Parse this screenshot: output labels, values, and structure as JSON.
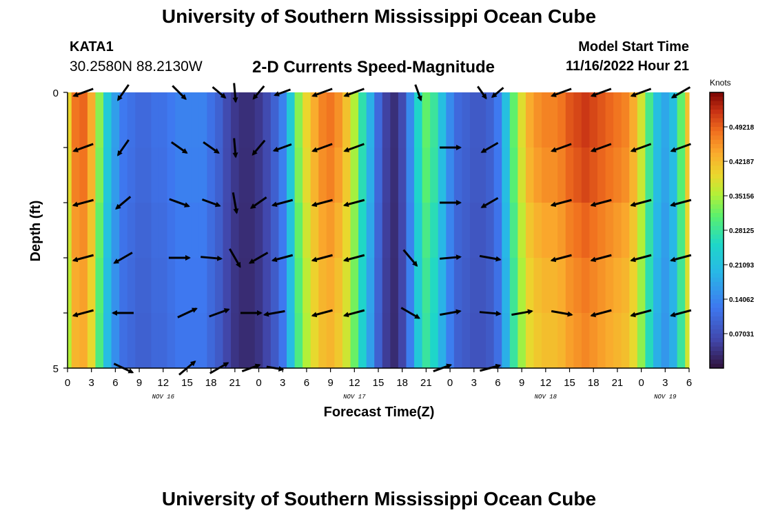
{
  "header": {
    "title": "University of Southern Mississippi Ocean Cube",
    "station_id": "KATA1",
    "station_coords": "30.2580N  88.2130W",
    "chart_title": "2-D Currents Speed-Magnitude",
    "start_label": "Model Start Time",
    "start_value": "11/16/2022 Hour 21"
  },
  "footer": {
    "title": "University of Southern Mississippi Ocean Cube"
  },
  "chart_data": {
    "type": "heatmap",
    "title": "2-D Currents Speed-Magnitude",
    "xlabel": "Forecast Time(Z)",
    "ylabel": "Depth (ft)",
    "ylim": [
      0,
      5
    ],
    "xlim_hours": [
      0,
      78
    ],
    "units": "Knots",
    "colorbar": {
      "min": 0,
      "max": 0.5625,
      "ticks": [
        "0.07031",
        "0.14062",
        "0.21093",
        "0.28125",
        "0.35156",
        "0.42187",
        "0.49218"
      ],
      "tick_values": [
        0.07031,
        0.14062,
        0.21093,
        0.28125,
        0.35156,
        0.42187,
        0.49218
      ]
    },
    "x_tick_hours": [
      0,
      3,
      6,
      9,
      12,
      15,
      18,
      21,
      24,
      27,
      30,
      33,
      36,
      39,
      42,
      45,
      48,
      51,
      54,
      57,
      60,
      63,
      66,
      69,
      72,
      75,
      78
    ],
    "x_tick_labels": [
      "0",
      "3",
      "6",
      "9",
      "12",
      "15",
      "18",
      "21",
      "0",
      "3",
      "6",
      "9",
      "12",
      "15",
      "18",
      "21",
      "0",
      "3",
      "6",
      "9",
      "12",
      "15",
      "18",
      "21",
      "0",
      "3",
      "6"
    ],
    "date_labels": [
      {
        "text": "NOV 16",
        "hour": 12
      },
      {
        "text": "NOV 17",
        "hour": 36
      },
      {
        "text": "NOV 18",
        "hour": 60
      },
      {
        "text": "NOV 19",
        "hour": 75
      }
    ],
    "y_tick_labels": [
      {
        "text": "0",
        "depth": 0
      },
      {
        "text": "5",
        "depth": 5
      }
    ],
    "depth_rows": [
      0,
      1,
      2,
      3,
      4,
      5
    ],
    "speed_profile": [
      [
        0,
        0.38
      ],
      [
        1,
        0.46
      ],
      [
        2,
        0.47
      ],
      [
        3,
        0.42
      ],
      [
        4,
        0.32
      ],
      [
        5,
        0.22
      ],
      [
        6,
        0.16
      ],
      [
        7,
        0.12
      ],
      [
        8,
        0.11
      ],
      [
        9,
        0.1
      ],
      [
        10,
        0.1
      ],
      [
        11,
        0.11
      ],
      [
        12,
        0.11
      ],
      [
        13,
        0.12
      ],
      [
        14,
        0.13
      ],
      [
        15,
        0.13
      ],
      [
        16,
        0.13
      ],
      [
        17,
        0.13
      ],
      [
        18,
        0.11
      ],
      [
        19,
        0.09
      ],
      [
        20,
        0.06
      ],
      [
        21,
        0.04
      ],
      [
        22,
        0.03
      ],
      [
        23,
        0.03
      ],
      [
        24,
        0.04
      ],
      [
        25,
        0.06
      ],
      [
        26,
        0.09
      ],
      [
        27,
        0.13
      ],
      [
        28,
        0.22
      ],
      [
        29,
        0.32
      ],
      [
        30,
        0.38
      ],
      [
        31,
        0.42
      ],
      [
        32,
        0.45
      ],
      [
        33,
        0.46
      ],
      [
        34,
        0.44
      ],
      [
        35,
        0.4
      ],
      [
        36,
        0.34
      ],
      [
        37,
        0.26
      ],
      [
        38,
        0.18
      ],
      [
        39,
        0.1
      ],
      [
        40,
        0.05
      ],
      [
        41,
        0.03
      ],
      [
        42,
        0.06
      ],
      [
        43,
        0.14
      ],
      [
        44,
        0.24
      ],
      [
        45,
        0.3
      ],
      [
        46,
        0.27
      ],
      [
        47,
        0.2
      ],
      [
        48,
        0.14
      ],
      [
        49,
        0.1
      ],
      [
        50,
        0.09
      ],
      [
        51,
        0.08
      ],
      [
        52,
        0.08
      ],
      [
        53,
        0.09
      ],
      [
        54,
        0.12
      ],
      [
        55,
        0.2
      ],
      [
        56,
        0.3
      ],
      [
        57,
        0.37
      ],
      [
        58,
        0.42
      ],
      [
        59,
        0.44
      ],
      [
        60,
        0.45
      ],
      [
        61,
        0.45
      ],
      [
        62,
        0.46
      ],
      [
        63,
        0.48
      ],
      [
        64,
        0.49
      ],
      [
        65,
        0.5
      ],
      [
        66,
        0.49
      ],
      [
        67,
        0.48
      ],
      [
        68,
        0.47
      ],
      [
        69,
        0.46
      ],
      [
        70,
        0.45
      ],
      [
        71,
        0.42
      ],
      [
        72,
        0.36
      ],
      [
        73,
        0.28
      ],
      [
        74,
        0.2
      ],
      [
        75,
        0.17
      ],
      [
        76,
        0.2
      ],
      [
        77,
        0.3
      ],
      [
        78,
        0.4
      ]
    ],
    "vectors": [
      {
        "hour": 2,
        "depth": 0,
        "dir": 250,
        "len": 1.0
      },
      {
        "hour": 7,
        "depth": 0,
        "dir": 215,
        "len": 0.9
      },
      {
        "hour": 14,
        "depth": 0,
        "dir": 135,
        "len": 0.9
      },
      {
        "hour": 19,
        "depth": 0,
        "dir": 130,
        "len": 0.8
      },
      {
        "hour": 21,
        "depth": 0,
        "dir": 175,
        "len": 0.9
      },
      {
        "hour": 24,
        "depth": 0,
        "dir": 220,
        "len": 0.8
      },
      {
        "hour": 27,
        "depth": 0,
        "dir": 250,
        "len": 0.8
      },
      {
        "hour": 32,
        "depth": 0,
        "dir": 250,
        "len": 1.0
      },
      {
        "hour": 36,
        "depth": 0,
        "dir": 250,
        "len": 1.0
      },
      {
        "hour": 44,
        "depth": 0,
        "dir": 160,
        "len": 0.8
      },
      {
        "hour": 52,
        "depth": 0,
        "dir": 145,
        "len": 0.7
      },
      {
        "hour": 54,
        "depth": 0,
        "dir": 230,
        "len": 0.7
      },
      {
        "hour": 62,
        "depth": 0,
        "dir": 250,
        "len": 1.0
      },
      {
        "hour": 67,
        "depth": 0,
        "dir": 250,
        "len": 1.0
      },
      {
        "hour": 72,
        "depth": 0,
        "dir": 250,
        "len": 1.0
      },
      {
        "hour": 77,
        "depth": 0,
        "dir": 240,
        "len": 1.0
      },
      {
        "hour": 2,
        "depth": 1,
        "dir": 250,
        "len": 1.0
      },
      {
        "hour": 7,
        "depth": 1,
        "dir": 215,
        "len": 0.9
      },
      {
        "hour": 14,
        "depth": 1,
        "dir": 125,
        "len": 0.9
      },
      {
        "hour": 18,
        "depth": 1,
        "dir": 125,
        "len": 0.9
      },
      {
        "hour": 21,
        "depth": 1,
        "dir": 175,
        "len": 0.9
      },
      {
        "hour": 24,
        "depth": 1,
        "dir": 220,
        "len": 0.9
      },
      {
        "hour": 27,
        "depth": 1,
        "dir": 250,
        "len": 0.9
      },
      {
        "hour": 32,
        "depth": 1,
        "dir": 250,
        "len": 1.0
      },
      {
        "hour": 36,
        "depth": 1,
        "dir": 250,
        "len": 1.0
      },
      {
        "hour": 48,
        "depth": 1,
        "dir": 90,
        "len": 1.0
      },
      {
        "hour": 53,
        "depth": 1,
        "dir": 240,
        "len": 0.9
      },
      {
        "hour": 62,
        "depth": 1,
        "dir": 250,
        "len": 1.0
      },
      {
        "hour": 67,
        "depth": 1,
        "dir": 250,
        "len": 1.0
      },
      {
        "hour": 72,
        "depth": 1,
        "dir": 250,
        "len": 1.0
      },
      {
        "hour": 77,
        "depth": 1,
        "dir": 250,
        "len": 1.0
      },
      {
        "hour": 2,
        "depth": 2,
        "dir": 255,
        "len": 1.0
      },
      {
        "hour": 7,
        "depth": 2,
        "dir": 230,
        "len": 0.9
      },
      {
        "hour": 14,
        "depth": 2,
        "dir": 110,
        "len": 1.0
      },
      {
        "hour": 18,
        "depth": 2,
        "dir": 110,
        "len": 0.9
      },
      {
        "hour": 21,
        "depth": 2,
        "dir": 170,
        "len": 1.0
      },
      {
        "hour": 24,
        "depth": 2,
        "dir": 235,
        "len": 0.9
      },
      {
        "hour": 27,
        "depth": 2,
        "dir": 255,
        "len": 1.0
      },
      {
        "hour": 32,
        "depth": 2,
        "dir": 255,
        "len": 1.0
      },
      {
        "hour": 36,
        "depth": 2,
        "dir": 255,
        "len": 1.0
      },
      {
        "hour": 48,
        "depth": 2,
        "dir": 90,
        "len": 1.0
      },
      {
        "hour": 53,
        "depth": 2,
        "dir": 240,
        "len": 0.9
      },
      {
        "hour": 62,
        "depth": 2,
        "dir": 255,
        "len": 1.0
      },
      {
        "hour": 67,
        "depth": 2,
        "dir": 255,
        "len": 1.0
      },
      {
        "hour": 72,
        "depth": 2,
        "dir": 255,
        "len": 1.0
      },
      {
        "hour": 77,
        "depth": 2,
        "dir": 255,
        "len": 1.0
      },
      {
        "hour": 2,
        "depth": 3,
        "dir": 255,
        "len": 1.0
      },
      {
        "hour": 7,
        "depth": 3,
        "dir": 240,
        "len": 1.0
      },
      {
        "hour": 14,
        "depth": 3,
        "dir": 90,
        "len": 1.0
      },
      {
        "hour": 18,
        "depth": 3,
        "dir": 95,
        "len": 1.0
      },
      {
        "hour": 21,
        "depth": 3,
        "dir": 150,
        "len": 1.0
      },
      {
        "hour": 24,
        "depth": 3,
        "dir": 240,
        "len": 1.0
      },
      {
        "hour": 27,
        "depth": 3,
        "dir": 255,
        "len": 1.0
      },
      {
        "hour": 32,
        "depth": 3,
        "dir": 255,
        "len": 1.0
      },
      {
        "hour": 36,
        "depth": 3,
        "dir": 255,
        "len": 1.0
      },
      {
        "hour": 43,
        "depth": 3,
        "dir": 140,
        "len": 1.0
      },
      {
        "hour": 48,
        "depth": 3,
        "dir": 85,
        "len": 1.0
      },
      {
        "hour": 53,
        "depth": 3,
        "dir": 100,
        "len": 1.0
      },
      {
        "hour": 62,
        "depth": 3,
        "dir": 255,
        "len": 1.0
      },
      {
        "hour": 67,
        "depth": 3,
        "dir": 255,
        "len": 1.0
      },
      {
        "hour": 72,
        "depth": 3,
        "dir": 255,
        "len": 1.0
      },
      {
        "hour": 77,
        "depth": 3,
        "dir": 255,
        "len": 1.0
      },
      {
        "hour": 2,
        "depth": 4,
        "dir": 255,
        "len": 1.0
      },
      {
        "hour": 7,
        "depth": 4,
        "dir": 270,
        "len": 1.0
      },
      {
        "hour": 15,
        "depth": 4,
        "dir": 65,
        "len": 1.0
      },
      {
        "hour": 19,
        "depth": 4,
        "dir": 70,
        "len": 1.0
      },
      {
        "hour": 23,
        "depth": 4,
        "dir": 90,
        "len": 1.0
      },
      {
        "hour": 26,
        "depth": 4,
        "dir": 260,
        "len": 1.0
      },
      {
        "hour": 32,
        "depth": 4,
        "dir": 255,
        "len": 1.0
      },
      {
        "hour": 36,
        "depth": 4,
        "dir": 255,
        "len": 1.0
      },
      {
        "hour": 43,
        "depth": 4,
        "dir": 120,
        "len": 1.0
      },
      {
        "hour": 48,
        "depth": 4,
        "dir": 80,
        "len": 1.0
      },
      {
        "hour": 53,
        "depth": 4,
        "dir": 95,
        "len": 1.0
      },
      {
        "hour": 57,
        "depth": 4,
        "dir": 80,
        "len": 1.0
      },
      {
        "hour": 62,
        "depth": 4,
        "dir": 100,
        "len": 1.0
      },
      {
        "hour": 67,
        "depth": 4,
        "dir": 255,
        "len": 1.0
      },
      {
        "hour": 72,
        "depth": 4,
        "dir": 255,
        "len": 1.0
      },
      {
        "hour": 77,
        "depth": 4,
        "dir": 255,
        "len": 1.0
      },
      {
        "hour": 7,
        "depth": 5,
        "dir": 115,
        "len": 1.0
      },
      {
        "hour": 15,
        "depth": 5,
        "dir": 50,
        "len": 1.0
      },
      {
        "hour": 19,
        "depth": 5,
        "dir": 60,
        "len": 1.0
      },
      {
        "hour": 23,
        "depth": 5,
        "dir": 70,
        "len": 0.9
      },
      {
        "hour": 26,
        "depth": 5,
        "dir": 100,
        "len": 0.8
      },
      {
        "hour": 47,
        "depth": 5,
        "dir": 70,
        "len": 0.9
      },
      {
        "hour": 53,
        "depth": 5,
        "dir": 75,
        "len": 1.0
      }
    ]
  }
}
